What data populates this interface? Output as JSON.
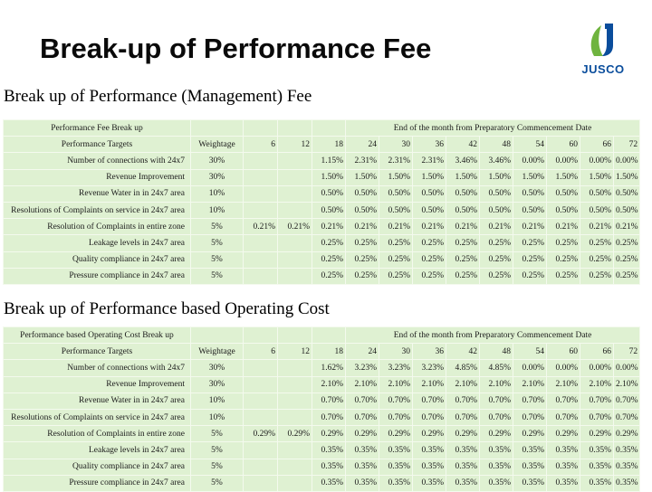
{
  "title": "Break-up of Performance Fee",
  "logo": {
    "text": "JUSCO"
  },
  "colors": {
    "table_bg": "#dff1d2",
    "logo_green": "#6fb43f",
    "logo_blue": "#0a4d9c"
  },
  "section1": {
    "title": "Break up of Performance (Management) Fee",
    "caption": "Performance Fee Break up",
    "period_header": "End of the month from Preparatory Commencement Date",
    "header": {
      "label": "Performance Targets",
      "weightage": "Weightage",
      "months": [
        "6",
        "12",
        "18",
        "24",
        "30",
        "36",
        "42",
        "48",
        "54",
        "60",
        "66",
        "72"
      ]
    },
    "rows": [
      {
        "label": "Number of connections with 24x7",
        "weight": "30%",
        "values": [
          "",
          "",
          "1.15%",
          "2.31%",
          "2.31%",
          "2.31%",
          "3.46%",
          "3.46%",
          "0.00%",
          "0.00%",
          "0.00%",
          "0.00%"
        ]
      },
      {
        "label": "Revenue Improvement",
        "weight": "30%",
        "values": [
          "",
          "",
          "1.50%",
          "1.50%",
          "1.50%",
          "1.50%",
          "1.50%",
          "1.50%",
          "1.50%",
          "1.50%",
          "1.50%",
          "1.50%"
        ]
      },
      {
        "label": "Revenue Water in in 24x7 area",
        "weight": "10%",
        "values": [
          "",
          "",
          "0.50%",
          "0.50%",
          "0.50%",
          "0.50%",
          "0.50%",
          "0.50%",
          "0.50%",
          "0.50%",
          "0.50%",
          "0.50%"
        ]
      },
      {
        "label": "Resolutions of Complaints on service in 24x7 area",
        "weight": "10%",
        "values": [
          "",
          "",
          "0.50%",
          "0.50%",
          "0.50%",
          "0.50%",
          "0.50%",
          "0.50%",
          "0.50%",
          "0.50%",
          "0.50%",
          "0.50%"
        ]
      },
      {
        "label": "Resolution of Complaints in entire zone",
        "weight": "5%",
        "values": [
          "0.21%",
          "0.21%",
          "0.21%",
          "0.21%",
          "0.21%",
          "0.21%",
          "0.21%",
          "0.21%",
          "0.21%",
          "0.21%",
          "0.21%",
          "0.21%"
        ]
      },
      {
        "label": "Leakage levels in 24x7 area",
        "weight": "5%",
        "values": [
          "",
          "",
          "0.25%",
          "0.25%",
          "0.25%",
          "0.25%",
          "0.25%",
          "0.25%",
          "0.25%",
          "0.25%",
          "0.25%",
          "0.25%"
        ]
      },
      {
        "label": "Quality compliance in 24x7 area",
        "weight": "5%",
        "values": [
          "",
          "",
          "0.25%",
          "0.25%",
          "0.25%",
          "0.25%",
          "0.25%",
          "0.25%",
          "0.25%",
          "0.25%",
          "0.25%",
          "0.25%"
        ]
      },
      {
        "label": "Pressure compliance in 24x7 area",
        "weight": "5%",
        "values": [
          "",
          "",
          "0.25%",
          "0.25%",
          "0.25%",
          "0.25%",
          "0.25%",
          "0.25%",
          "0.25%",
          "0.25%",
          "0.25%",
          "0.25%"
        ]
      }
    ]
  },
  "section2": {
    "title": "Break up of Performance based Operating Cost",
    "caption": "Performance based Operating Cost Break up",
    "period_header": "End of the month from Preparatory Commencement Date",
    "header": {
      "label": "Performance Targets",
      "weightage": "Weightage",
      "months": [
        "6",
        "12",
        "18",
        "24",
        "30",
        "36",
        "42",
        "48",
        "54",
        "60",
        "66",
        "72"
      ]
    },
    "rows": [
      {
        "label": "Number of connections with 24x7",
        "weight": "30%",
        "values": [
          "",
          "",
          "1.62%",
          "3.23%",
          "3.23%",
          "3.23%",
          "4.85%",
          "4.85%",
          "0.00%",
          "0.00%",
          "0.00%",
          "0.00%"
        ]
      },
      {
        "label": "Revenue Improvement",
        "weight": "30%",
        "values": [
          "",
          "",
          "2.10%",
          "2.10%",
          "2.10%",
          "2.10%",
          "2.10%",
          "2.10%",
          "2.10%",
          "2.10%",
          "2.10%",
          "2.10%"
        ]
      },
      {
        "label": "Revenue Water in in 24x7 area",
        "weight": "10%",
        "values": [
          "",
          "",
          "0.70%",
          "0.70%",
          "0.70%",
          "0.70%",
          "0.70%",
          "0.70%",
          "0.70%",
          "0.70%",
          "0.70%",
          "0.70%"
        ]
      },
      {
        "label": "Resolutions of Complaints on service in 24x7 area",
        "weight": "10%",
        "values": [
          "",
          "",
          "0.70%",
          "0.70%",
          "0.70%",
          "0.70%",
          "0.70%",
          "0.70%",
          "0.70%",
          "0.70%",
          "0.70%",
          "0.70%"
        ]
      },
      {
        "label": "Resolution of Complaints in entire zone",
        "weight": "5%",
        "values": [
          "0.29%",
          "0.29%",
          "0.29%",
          "0.29%",
          "0.29%",
          "0.29%",
          "0.29%",
          "0.29%",
          "0.29%",
          "0.29%",
          "0.29%",
          "0.29%"
        ]
      },
      {
        "label": "Leakage levels in 24x7 area",
        "weight": "5%",
        "values": [
          "",
          "",
          "0.35%",
          "0.35%",
          "0.35%",
          "0.35%",
          "0.35%",
          "0.35%",
          "0.35%",
          "0.35%",
          "0.35%",
          "0.35%"
        ]
      },
      {
        "label": "Quality compliance in 24x7 area",
        "weight": "5%",
        "values": [
          "",
          "",
          "0.35%",
          "0.35%",
          "0.35%",
          "0.35%",
          "0.35%",
          "0.35%",
          "0.35%",
          "0.35%",
          "0.35%",
          "0.35%"
        ]
      },
      {
        "label": "Pressure compliance in 24x7 area",
        "weight": "5%",
        "values": [
          "",
          "",
          "0.35%",
          "0.35%",
          "0.35%",
          "0.35%",
          "0.35%",
          "0.35%",
          "0.35%",
          "0.35%",
          "0.35%",
          "0.35%"
        ]
      }
    ]
  }
}
